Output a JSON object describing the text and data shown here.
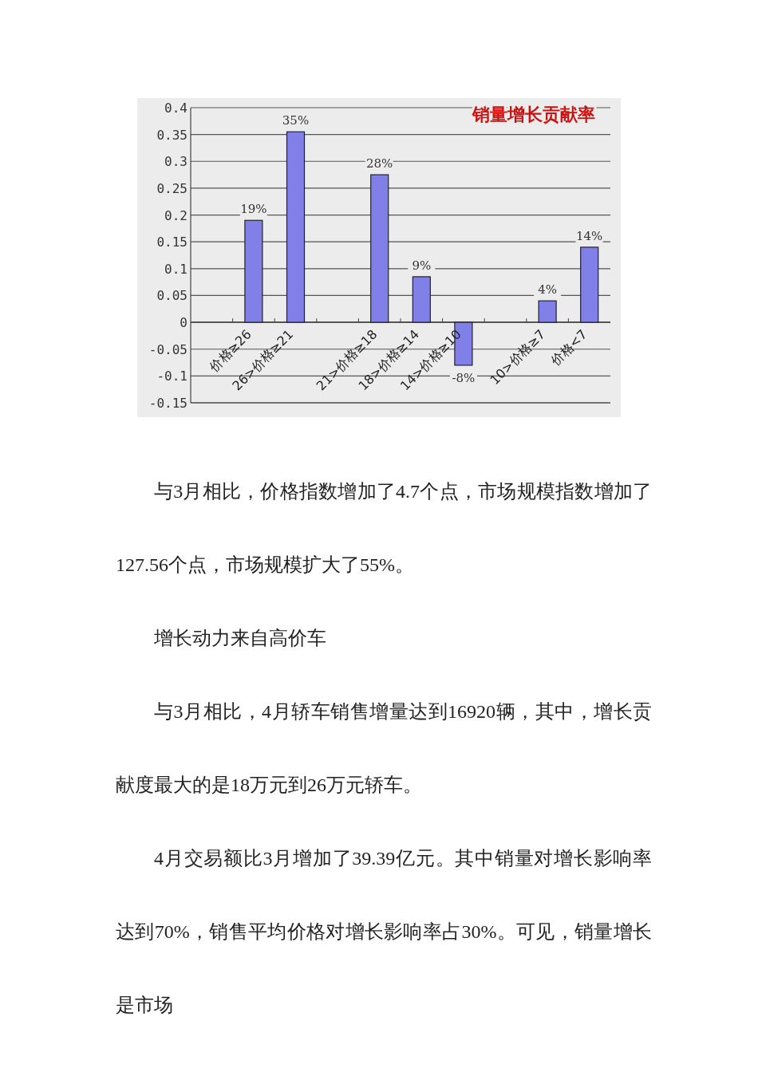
{
  "chart_data": {
    "type": "bar",
    "title": "销量增长贡献率",
    "categories": [
      null,
      "价格≥26",
      "26>价格≥21",
      null,
      "21>价格≥18",
      "18>价格≥14",
      "14>价格≥10",
      null,
      "10>价格≥7",
      "价格<7"
    ],
    "values": [
      null,
      0.19,
      0.355,
      null,
      0.275,
      0.085,
      -0.08,
      null,
      0.04,
      0.14
    ],
    "value_labels": [
      null,
      "19%",
      "35%",
      null,
      "28%",
      "9%",
      "-8%",
      null,
      "4%",
      "14%"
    ],
    "color": "#8080e8",
    "ylim": [
      -0.15,
      0.4
    ],
    "yticks": [
      -0.15,
      -0.1,
      -0.05,
      0,
      0.05,
      0.1,
      0.15,
      0.2,
      0.25,
      0.3,
      0.35,
      0.4
    ],
    "grid": "y",
    "annotations": [
      "与3月相比，价格指数增加了4.7个点，市场规模指数增加了127.56个点，市场规模扩大了55%。",
      "增长动力来自高价车",
      "与3月相比，4月轿车销售增量达到16920辆，其中，增长贡献度最大的是18万元到26万元轿车。",
      "4月交易额比3月增加了39.39亿元。其中销量对增长影响率达到70%，销售平均价格对增长影响率占30%。可见，销量增长是市场"
    ]
  }
}
